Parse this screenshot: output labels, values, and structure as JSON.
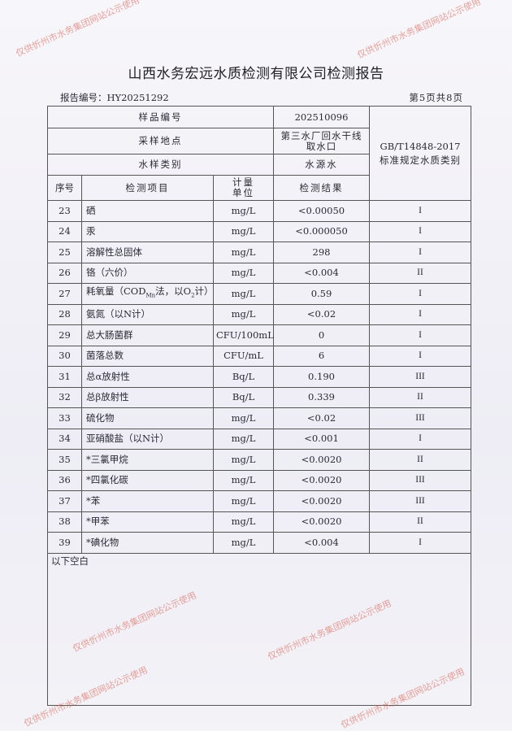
{
  "title": "山西水务宏远水质检测有限公司检测报告",
  "report_no": "报告编号：HY20251292",
  "page_info": "第5页共8页",
  "header": {
    "sample_no_label": "样品编号",
    "sample_no": "202510096",
    "location_label": "采样地点",
    "location_line1": "第三水厂回水干线",
    "location_line2": "取水口",
    "type_label": "水样类别",
    "type": "水源水",
    "standard_line1": "GB/T14848-2017",
    "standard_line2": "标准规定水质类别",
    "col_seq": "序号",
    "col_item": "检测项目",
    "col_unit_line1": "计量",
    "col_unit_line2": "单位",
    "col_result": "检测结果"
  },
  "rows": [
    {
      "seq": "23",
      "item": "硒",
      "unit": "mg/L",
      "result": "<0.00050",
      "class": "I"
    },
    {
      "seq": "24",
      "item": "汞",
      "unit": "mg/L",
      "result": "<0.000050",
      "class": "I"
    },
    {
      "seq": "25",
      "item": "溶解性总固体",
      "unit": "mg/L",
      "result": "298",
      "class": "I"
    },
    {
      "seq": "26",
      "item": "铬（六价）",
      "unit": "mg/L",
      "result": "<0.004",
      "class": "II"
    },
    {
      "seq": "27",
      "item": "耗氧量（COD_Mn法，以O_2计）",
      "unit": "mg/L",
      "result": "0.59",
      "class": "I"
    },
    {
      "seq": "28",
      "item": "氨氮（以N计）",
      "unit": "mg/L",
      "result": "<0.02",
      "class": "I"
    },
    {
      "seq": "29",
      "item": "总大肠菌群",
      "unit": "CFU/100mL",
      "result": "0",
      "class": "I"
    },
    {
      "seq": "30",
      "item": "菌落总数",
      "unit": "CFU/mL",
      "result": "6",
      "class": "I"
    },
    {
      "seq": "31",
      "item": "总α放射性",
      "unit": "Bq/L",
      "result": "0.190",
      "class": "III"
    },
    {
      "seq": "32",
      "item": "总β放射性",
      "unit": "Bq/L",
      "result": "0.339",
      "class": "II"
    },
    {
      "seq": "33",
      "item": "硫化物",
      "unit": "mg/L",
      "result": "<0.02",
      "class": "III"
    },
    {
      "seq": "34",
      "item": "亚硝酸盐（以N计）",
      "unit": "mg/L",
      "result": "<0.001",
      "class": "I"
    },
    {
      "seq": "35",
      "item": "*三氯甲烷",
      "unit": "mg/L",
      "result": "<0.0020",
      "class": "II"
    },
    {
      "seq": "36",
      "item": "*四氯化碳",
      "unit": "mg/L",
      "result": "<0.0020",
      "class": "III"
    },
    {
      "seq": "37",
      "item": "*苯",
      "unit": "mg/L",
      "result": "<0.0020",
      "class": "III"
    },
    {
      "seq": "38",
      "item": "*甲苯",
      "unit": "mg/L",
      "result": "<0.0020",
      "class": "II"
    },
    {
      "seq": "39",
      "item": "*碘化物",
      "unit": "mg/L",
      "result": "<0.004",
      "class": "I"
    }
  ],
  "footer_note": "以下空白",
  "watermark": "仅供忻州市水务集团网站公示使用",
  "watermark_color": "#d9584a"
}
